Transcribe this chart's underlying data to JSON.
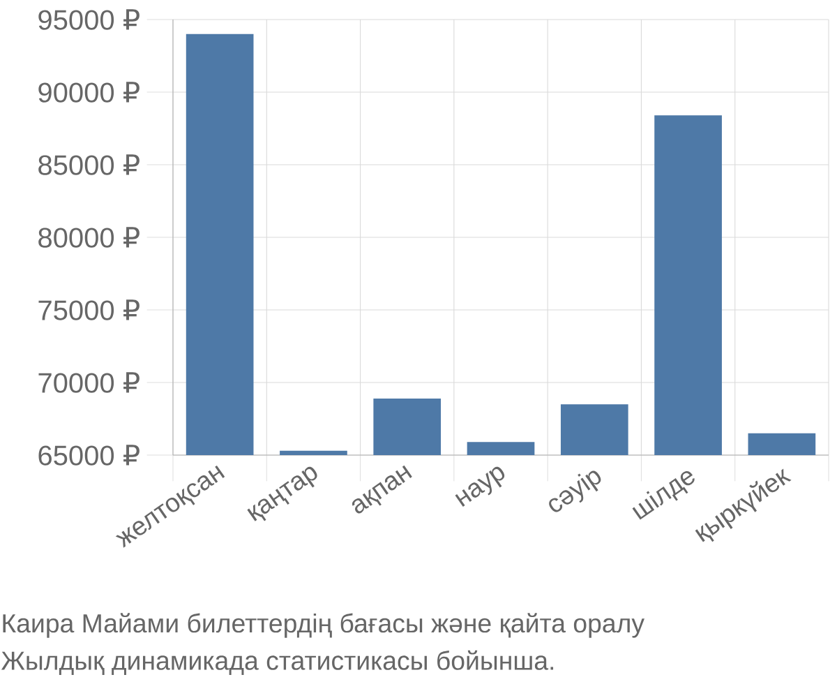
{
  "chart_data": {
    "type": "bar",
    "categories": [
      "желтоқсан",
      "қаңтар",
      "ақпан",
      "наур",
      "сәуір",
      "шілде",
      "қыркүйек"
    ],
    "values": [
      94000,
      65300,
      68900,
      65900,
      68500,
      88400,
      66500
    ],
    "color": "#4e79a7",
    "ylim": [
      65000,
      95000
    ],
    "yticks": [
      {
        "value": 65000,
        "label": "65000 ₽"
      },
      {
        "value": 70000,
        "label": "70000 ₽"
      },
      {
        "value": 75000,
        "label": "75000 ₽"
      },
      {
        "value": 80000,
        "label": "80000 ₽"
      },
      {
        "value": 85000,
        "label": "85000 ₽"
      },
      {
        "value": 90000,
        "label": "90000 ₽"
      },
      {
        "value": 95000,
        "label": "95000 ₽"
      }
    ],
    "grid": true,
    "annotations": [
      "Каира Майами билеттердің бағасы және қайта оралу",
      "Жылдық динамикада статистикасы бойынша."
    ]
  }
}
